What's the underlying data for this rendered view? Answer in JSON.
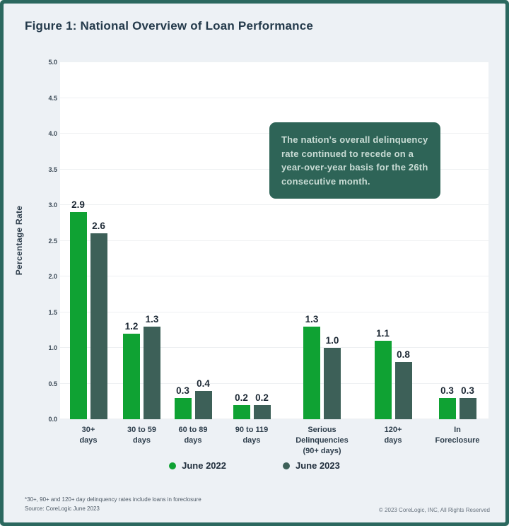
{
  "header": {
    "title": "Figure 1: National Overview of Loan Performance"
  },
  "chart_data": {
    "type": "bar",
    "title": "Figure 1: National Overview of Loan Performance",
    "xlabel": "",
    "ylabel": "Percentage Rate",
    "ylim": [
      0,
      5.0
    ],
    "ytick_step": 0.5,
    "grid": "horizontal",
    "legend_position": "bottom-center",
    "categories": [
      "30+\ndays",
      "30 to 59\ndays",
      "60 to 89\ndays",
      "90 to 119\ndays",
      "Serious Delinquencies\n(90+ days)",
      "120+\ndays",
      "In\nForeclosure"
    ],
    "category_widths": [
      80,
      71,
      74,
      92,
      107,
      94,
      88
    ],
    "series": [
      {
        "name": "June 2022",
        "color": "#0FA233",
        "values": [
          2.9,
          1.2,
          0.3,
          0.2,
          1.3,
          1.1,
          0.3
        ]
      },
      {
        "name": "June 2023",
        "color": "#3D6058",
        "values": [
          2.6,
          1.3,
          0.4,
          0.2,
          1.0,
          0.8,
          0.3
        ]
      }
    ],
    "annotation": "The nation's overall delinquency rate continued to recede on a year-over-year basis for the 26th consecutive month."
  },
  "colors": {
    "frame": "#2B685F",
    "page_background": "#EDF1F5",
    "plot_background": "#FFFFFF",
    "annotation_background": "#2E6457",
    "annotation_text": "#C9DCD5",
    "series_green": "#0FA233",
    "series_teal": "#3D6058"
  },
  "footer": {
    "footnote_line1": "*30+, 90+ and 120+ day delinquency rates include loans in foreclosure",
    "footnote_line2": "Source: CoreLogic June 2023",
    "copyright": "© 2023 CoreLogic, INC, All Rights Reserved"
  }
}
